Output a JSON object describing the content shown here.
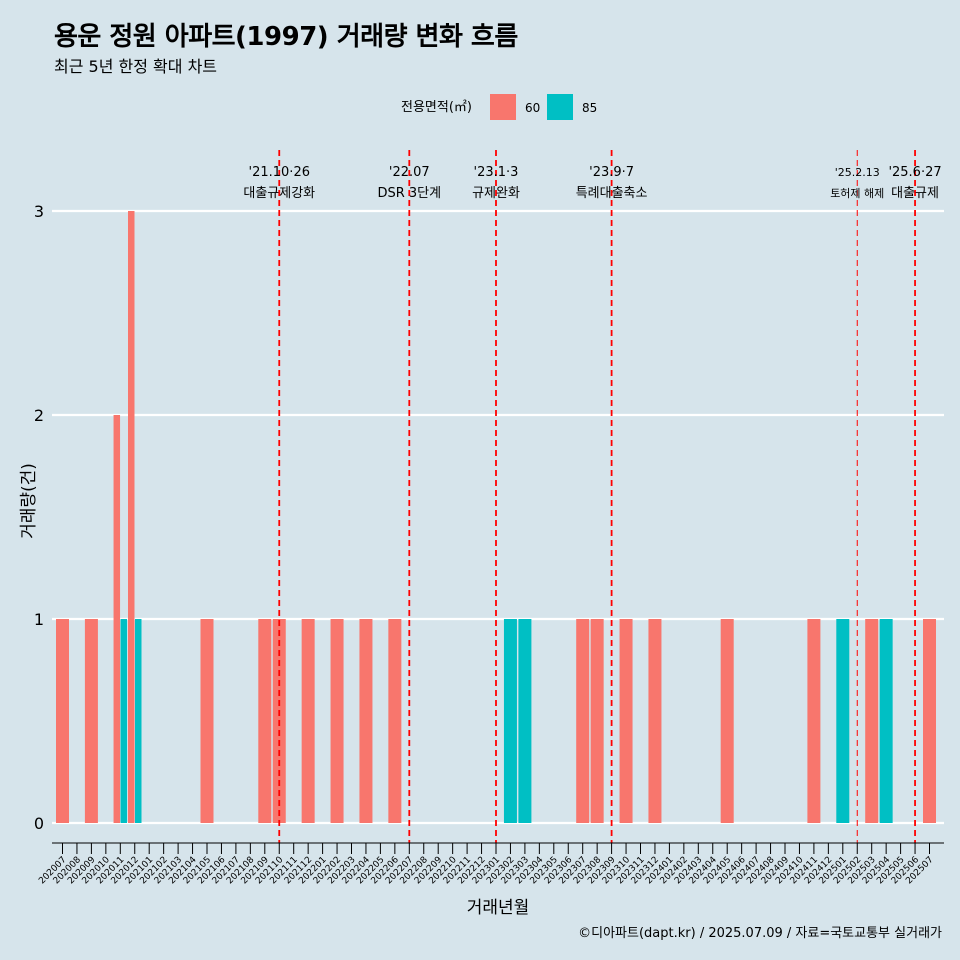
{
  "header": {
    "title": "용운 정원 아파트(1997) 거래량 변화 흐름",
    "subtitle": "최근 5년 한정 확대 차트"
  },
  "caption": "©디아파트(dapt.kr) / 2025.07.09 / 자료=국토교통부 실거래가",
  "colors": {
    "background": "#d6e4eb",
    "area60": "#f8766d",
    "area85": "#00bfc4",
    "event_line": "#ff0000",
    "grid": "#ffffff"
  },
  "chart_data": {
    "type": "bar",
    "xlabel": "거래년월",
    "ylabel": "거래량(건)",
    "ylim": [
      0,
      3
    ],
    "yticks": [
      0,
      1,
      2,
      3
    ],
    "grid": "horizontal",
    "legend": {
      "title": "전용면적(㎡)",
      "placement": "top",
      "entries": [
        "60",
        "85"
      ]
    },
    "categories": [
      "202007",
      "202008",
      "202009",
      "202010",
      "202011",
      "202012",
      "202101",
      "202102",
      "202103",
      "202104",
      "202105",
      "202106",
      "202107",
      "202108",
      "202109",
      "202110",
      "202111",
      "202112",
      "202201",
      "202202",
      "202203",
      "202204",
      "202205",
      "202206",
      "202207",
      "202208",
      "202209",
      "202210",
      "202211",
      "202212",
      "202301",
      "202302",
      "202303",
      "202304",
      "202305",
      "202306",
      "202307",
      "202308",
      "202309",
      "202310",
      "202311",
      "202312",
      "202401",
      "202402",
      "202403",
      "202404",
      "202405",
      "202406",
      "202407",
      "202408",
      "202409",
      "202410",
      "202411",
      "202412",
      "202501",
      "202502",
      "202503",
      "202504",
      "202505",
      "202506",
      "202507"
    ],
    "bars": [
      {
        "month": "202007",
        "area": "60",
        "value": 1
      },
      {
        "month": "202009",
        "area": "60",
        "value": 1
      },
      {
        "month": "202011",
        "area": "60",
        "value": 2
      },
      {
        "month": "202011",
        "area": "85",
        "value": 1
      },
      {
        "month": "202012",
        "area": "60",
        "value": 3
      },
      {
        "month": "202012",
        "area": "85",
        "value": 1
      },
      {
        "month": "202105",
        "area": "60",
        "value": 1
      },
      {
        "month": "202109",
        "area": "60",
        "value": 1
      },
      {
        "month": "202110",
        "area": "60",
        "value": 1
      },
      {
        "month": "202112",
        "area": "60",
        "value": 1
      },
      {
        "month": "202202",
        "area": "60",
        "value": 1
      },
      {
        "month": "202204",
        "area": "60",
        "value": 1
      },
      {
        "month": "202206",
        "area": "60",
        "value": 1
      },
      {
        "month": "202302",
        "area": "85",
        "value": 1
      },
      {
        "month": "202303",
        "area": "85",
        "value": 1
      },
      {
        "month": "202307",
        "area": "60",
        "value": 1
      },
      {
        "month": "202308",
        "area": "60",
        "value": 1
      },
      {
        "month": "202310",
        "area": "60",
        "value": 1
      },
      {
        "month": "202312",
        "area": "60",
        "value": 1
      },
      {
        "month": "202405",
        "area": "60",
        "value": 1
      },
      {
        "month": "202411",
        "area": "60",
        "value": 1
      },
      {
        "month": "202501",
        "area": "85",
        "value": 1
      },
      {
        "month": "202503",
        "area": "60",
        "value": 1
      },
      {
        "month": "202504",
        "area": "85",
        "value": 1
      },
      {
        "month": "202507",
        "area": "60",
        "value": 1
      }
    ],
    "events": [
      {
        "month": "202110",
        "date": "'21.10·26",
        "label": "대출규제강화",
        "style": "major"
      },
      {
        "month": "202207",
        "date": "'22.07",
        "label": "DSR 3단계",
        "style": "major"
      },
      {
        "month": "202301",
        "date": "'23.1·3",
        "label": "규제완화",
        "style": "major"
      },
      {
        "month": "202309",
        "date": "'23.9·7",
        "label": "특례대출축소",
        "style": "major"
      },
      {
        "month": "202502",
        "date": "'25.2.13",
        "label": "토허제 해제",
        "style": "minor"
      },
      {
        "month": "202506",
        "date": "'25.6·27",
        "label": "대출규제",
        "style": "major"
      }
    ]
  }
}
